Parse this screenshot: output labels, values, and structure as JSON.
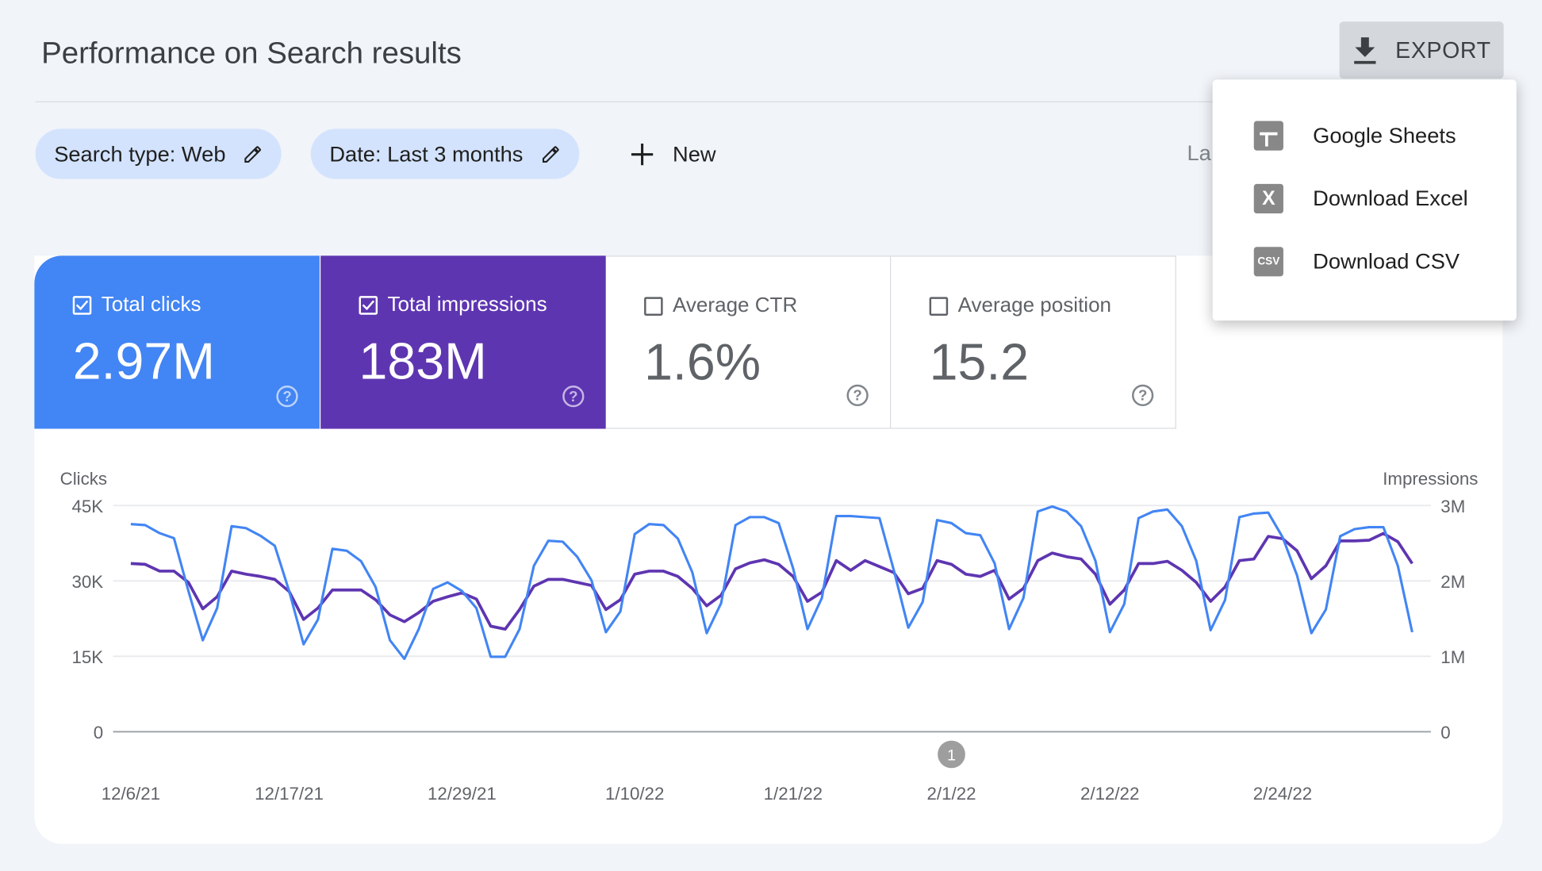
{
  "header": {
    "title": "Performance on Search results",
    "export_label": "EXPORT"
  },
  "filters": {
    "chips": [
      {
        "label": "Search type: Web"
      },
      {
        "label": "Date: Last 3 months"
      }
    ],
    "new_label": "New",
    "last_updated_partial": "La"
  },
  "export_menu": {
    "items": [
      {
        "label": "Google Sheets",
        "icon": "sheets-icon"
      },
      {
        "label": "Download Excel",
        "icon": "excel-icon",
        "glyph": "X"
      },
      {
        "label": "Download CSV",
        "icon": "csv-icon",
        "glyph": "CSV"
      }
    ]
  },
  "metrics": [
    {
      "label": "Total clicks",
      "value": "2.97M",
      "checked": true,
      "color": "#4285f4"
    },
    {
      "label": "Total impressions",
      "value": "183M",
      "checked": true,
      "color": "#5e35b1"
    },
    {
      "label": "Average CTR",
      "value": "1.6%",
      "checked": false
    },
    {
      "label": "Average position",
      "value": "15.2",
      "checked": false
    }
  ],
  "chart_data": {
    "type": "line",
    "ylabel_left": "Clicks",
    "ylabel_right": "Impressions",
    "yticks_left": [
      "0",
      "15K",
      "30K",
      "45K"
    ],
    "yticks_right": [
      "0",
      "1M",
      "2M",
      "3M"
    ],
    "ylim_left": [
      0,
      45000
    ],
    "ylim_right": [
      0,
      3000000
    ],
    "xtick_labels": [
      "12/6/21",
      "12/17/21",
      "12/29/21",
      "1/10/22",
      "1/21/22",
      "2/1/22",
      "2/12/22",
      "2/24/22"
    ],
    "annotation": {
      "date": "2/1/22",
      "label": "1"
    },
    "grid": true,
    "x": [
      "12/6/21",
      "12/7/21",
      "12/8/21",
      "12/9/21",
      "12/10/21",
      "12/11/21",
      "12/12/21",
      "12/13/21",
      "12/14/21",
      "12/15/21",
      "12/16/21",
      "12/17/21",
      "12/18/21",
      "12/19/21",
      "12/20/21",
      "12/21/21",
      "12/22/21",
      "12/23/21",
      "12/24/21",
      "12/25/21",
      "12/26/21",
      "12/27/21",
      "12/28/21",
      "12/29/21",
      "12/30/21",
      "12/31/21",
      "1/1/22",
      "1/2/22",
      "1/3/22",
      "1/4/22",
      "1/5/22",
      "1/6/22",
      "1/7/22",
      "1/8/22",
      "1/9/22",
      "1/10/22",
      "1/11/22",
      "1/12/22",
      "1/13/22",
      "1/14/22",
      "1/15/22",
      "1/16/22",
      "1/17/22",
      "1/18/22",
      "1/19/22",
      "1/20/22",
      "1/21/22",
      "1/22/22",
      "1/23/22",
      "1/24/22",
      "1/25/22",
      "1/26/22",
      "1/27/22",
      "1/28/22",
      "1/29/22",
      "1/30/22",
      "1/31/22",
      "2/1/22",
      "2/2/22",
      "2/3/22",
      "2/4/22",
      "2/5/22",
      "2/6/22",
      "2/7/22",
      "2/8/22",
      "2/9/22",
      "2/10/22",
      "2/11/22",
      "2/12/22",
      "2/13/22",
      "2/14/22",
      "2/15/22",
      "2/16/22",
      "2/17/22",
      "2/18/22",
      "2/19/22",
      "2/20/22",
      "2/21/22",
      "2/22/22",
      "2/23/22",
      "2/24/22",
      "2/25/22",
      "2/26/22",
      "2/27/22",
      "2/28/22",
      "3/1/22",
      "3/2/22",
      "3/3/22",
      "3/4/22",
      "3/5/22"
    ],
    "series": [
      {
        "name": "Clicks",
        "axis": "left",
        "color": "#4285f4",
        "values": [
          41300,
          41100,
          39500,
          38500,
          28000,
          18200,
          24600,
          40900,
          40500,
          39000,
          37000,
          28000,
          17400,
          22300,
          36400,
          36000,
          33900,
          28800,
          18200,
          14500,
          20400,
          28400,
          29700,
          28000,
          24600,
          14900,
          14900,
          20400,
          33000,
          38000,
          37800,
          34800,
          30100,
          19800,
          23900,
          39300,
          41300,
          41100,
          38400,
          31700,
          19600,
          25600,
          41100,
          42700,
          42700,
          41500,
          32500,
          20400,
          26600,
          42900,
          42900,
          42700,
          42500,
          32100,
          20700,
          25800,
          42100,
          41500,
          39500,
          39100,
          33500,
          20400,
          26600,
          43800,
          44800,
          43800,
          40900,
          34000,
          19800,
          25400,
          42500,
          43800,
          44200,
          40900,
          34000,
          20200,
          26200,
          42700,
          43400,
          43600,
          38700,
          31100,
          19600,
          24300,
          38900,
          40300,
          40700,
          40700,
          33000,
          19800
        ]
      },
      {
        "name": "Impressions",
        "axis": "right",
        "color": "#5e35b1",
        "values": [
          2230000,
          2220000,
          2130000,
          2130000,
          1980000,
          1630000,
          1790000,
          2130000,
          2090000,
          2060000,
          2020000,
          1860000,
          1490000,
          1640000,
          1880000,
          1880000,
          1880000,
          1750000,
          1550000,
          1460000,
          1580000,
          1730000,
          1790000,
          1840000,
          1760000,
          1400000,
          1360000,
          1620000,
          1930000,
          2020000,
          2020000,
          1980000,
          1940000,
          1620000,
          1750000,
          2090000,
          2130000,
          2130000,
          2060000,
          1900000,
          1670000,
          1810000,
          2160000,
          2240000,
          2280000,
          2220000,
          2060000,
          1730000,
          1850000,
          2270000,
          2140000,
          2270000,
          2190000,
          2110000,
          1830000,
          1900000,
          2270000,
          2220000,
          2090000,
          2060000,
          2140000,
          1760000,
          1900000,
          2270000,
          2370000,
          2320000,
          2290000,
          2090000,
          1690000,
          1880000,
          2230000,
          2230000,
          2260000,
          2140000,
          1980000,
          1730000,
          1920000,
          2270000,
          2290000,
          2590000,
          2560000,
          2400000,
          2030000,
          2200000,
          2530000,
          2530000,
          2540000,
          2630000,
          2520000,
          2230000
        ]
      }
    ]
  }
}
